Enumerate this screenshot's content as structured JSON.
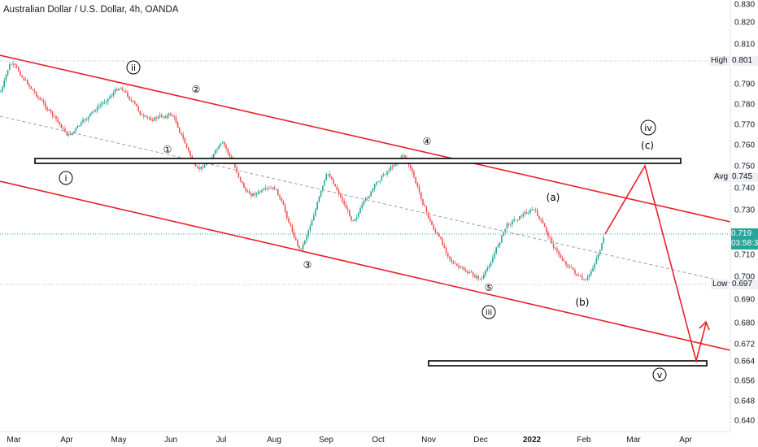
{
  "header": {
    "title": "Australian Dollar / U.S. Dollar, 4h, OANDA"
  },
  "chart_data": {
    "type": "candlestick",
    "symbol": "AUDUSD",
    "timeframe": "4h",
    "y_ticks": [
      "0.830",
      "0.820",
      "0.810",
      "0.801",
      "0.790",
      "0.780",
      "0.770",
      "0.760",
      "0.750",
      "0.745",
      "0.740",
      "0.730",
      "0.719",
      "0.710",
      "0.700",
      "0.697",
      "0.690",
      "0.680",
      "0.672",
      "0.664",
      "0.656",
      "0.648",
      "0.640"
    ],
    "ylim": [
      0.637,
      0.831
    ],
    "x_ticks": [
      {
        "label": "Mar",
        "bold": false
      },
      {
        "label": "Apr",
        "bold": false
      },
      {
        "label": "May",
        "bold": false
      },
      {
        "label": "Jun",
        "bold": false
      },
      {
        "label": "Jul",
        "bold": false
      },
      {
        "label": "Aug",
        "bold": false
      },
      {
        "label": "Sep",
        "bold": false
      },
      {
        "label": "Oct",
        "bold": false
      },
      {
        "label": "Nov",
        "bold": false
      },
      {
        "label": "Dec",
        "bold": false
      },
      {
        "label": "2022",
        "bold": true
      },
      {
        "label": "Feb",
        "bold": false
      },
      {
        "label": "Mar",
        "bold": false
      },
      {
        "label": "Apr",
        "bold": false
      }
    ],
    "price_path": [
      [
        "Mar",
        0.786
      ],
      [
        "Mar",
        0.801
      ],
      [
        "Apr",
        0.764
      ],
      [
        "Apr",
        0.776
      ],
      [
        "May",
        0.789
      ],
      [
        "May",
        0.772
      ],
      [
        "Jun",
        0.775
      ],
      [
        "Jun",
        0.747
      ],
      [
        "Jul",
        0.761
      ],
      [
        "Jul",
        0.737
      ],
      [
        "Aug",
        0.74
      ],
      [
        "Aug",
        0.711
      ],
      [
        "Sep",
        0.748
      ],
      [
        "Sep",
        0.725
      ],
      [
        "Oct",
        0.745
      ],
      [
        "Oct",
        0.756
      ],
      [
        "Nov",
        0.724
      ],
      [
        "Nov",
        0.705
      ],
      [
        "Dec",
        0.699
      ],
      [
        "Dec",
        0.724
      ],
      [
        "2022",
        0.731
      ],
      [
        "2022",
        0.71
      ],
      [
        "Feb",
        0.697
      ],
      [
        "Feb",
        0.719
      ]
    ],
    "price_levels": {
      "high": {
        "label": "High",
        "value": "0.801"
      },
      "avg": {
        "label": "Avg",
        "value": "0.745"
      },
      "low": {
        "label": "Low",
        "value": "0.697"
      },
      "current": {
        "value": "0.719",
        "countdown": "03:58:3"
      }
    },
    "wave_labels": [
      {
        "text": "ⓘ",
        "role": "i"
      },
      {
        "text": "ⓘⓘ",
        "role": "ii"
      },
      {
        "text": "①",
        "role": "1"
      },
      {
        "text": "②",
        "role": "2"
      },
      {
        "text": "③",
        "role": "3"
      },
      {
        "text": "④",
        "role": "4"
      },
      {
        "text": "⑤",
        "role": "5"
      },
      {
        "text": "iii",
        "role": "iii"
      },
      {
        "text": "iv",
        "role": "iv"
      },
      {
        "text": "v",
        "role": "v"
      },
      {
        "text": "(a)",
        "role": "a"
      },
      {
        "text": "(b)",
        "role": "b"
      },
      {
        "text": "(c)",
        "role": "c"
      }
    ],
    "channel_color": "#e8202a",
    "up_color": "#26a69a",
    "down_color": "#ef5350",
    "grid": false
  }
}
